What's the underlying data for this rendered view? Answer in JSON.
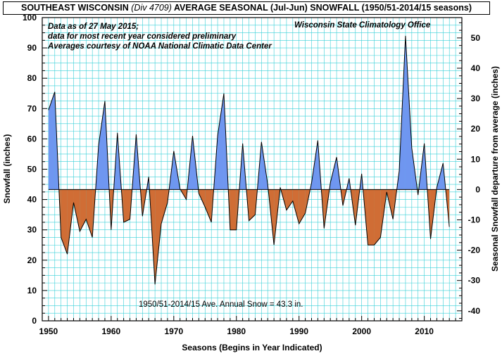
{
  "title": {
    "main_a": "SOUTHEAST WISCONSIN ",
    "division": "(Div 4709)",
    "main_b": " AVERAGE SEASONAL (Jul-Jun) SNOWFALL (1950/51-2014/15 seasons)"
  },
  "notes": [
    "Data as of 27 May 2015;",
    "data for most recent year considered preliminary",
    "Averages courtesy of NOAA National Climatic Data Center"
  ],
  "source": "Wisconsin State Climatology Office",
  "average_label": "1950/51-2014/15 Ave. Annual Snow = 43.3 in.",
  "colors": {
    "above": "#6f96f0",
    "below": "#d06d35",
    "grid": "#38d0d8",
    "outline": "#000000"
  },
  "chart_data": {
    "type": "area",
    "xlabel": "Seasons (Begins in Year Indicated)",
    "ylabel": "Snowfall  (inches)",
    "y2label": "Seasonal Snowfall departure from average (inches)",
    "xlim": [
      1949,
      2016
    ],
    "ylim": [
      0,
      100
    ],
    "y2lim": [
      -43.3,
      56.7
    ],
    "xticks": [
      1950,
      1960,
      1970,
      1980,
      1990,
      2000,
      2010
    ],
    "yticks": [
      0,
      10,
      20,
      30,
      40,
      50,
      60,
      70,
      80,
      90,
      100
    ],
    "y2ticks": [
      -40,
      -30,
      -20,
      -10,
      0,
      10,
      20,
      30,
      40,
      50
    ],
    "average": 43.3,
    "grid": true,
    "x": [
      1950,
      1951,
      1952,
      1953,
      1954,
      1955,
      1956,
      1957,
      1958,
      1959,
      1960,
      1961,
      1962,
      1963,
      1964,
      1965,
      1966,
      1967,
      1968,
      1969,
      1970,
      1971,
      1972,
      1973,
      1974,
      1975,
      1976,
      1977,
      1978,
      1979,
      1980,
      1981,
      1982,
      1983,
      1984,
      1985,
      1986,
      1987,
      1988,
      1989,
      1990,
      1991,
      1992,
      1993,
      1994,
      1995,
      1996,
      1997,
      1998,
      1999,
      2000,
      2001,
      2002,
      2003,
      2004,
      2005,
      2006,
      2007,
      2008,
      2009,
      2010,
      2011,
      2012,
      2013,
      2014
    ],
    "values": [
      69.5,
      75.5,
      27.5,
      22,
      39,
      29.5,
      33.5,
      27.5,
      58,
      72.5,
      30,
      62,
      32.5,
      33.5,
      61.5,
      34.5,
      47.5,
      12,
      32,
      39,
      56,
      43.5,
      40,
      61,
      42,
      37.5,
      32.5,
      61,
      75,
      30,
      30,
      58.5,
      33,
      35,
      59,
      45,
      25,
      44,
      36.5,
      39.5,
      32,
      35.5,
      45.5,
      59.5,
      30.5,
      45.5,
      54,
      38,
      47,
      31.5,
      48.5,
      25,
      25,
      27.5,
      42.5,
      33.5,
      49.5,
      94,
      57,
      41.5,
      58.5,
      27,
      44,
      52,
      31
    ]
  }
}
